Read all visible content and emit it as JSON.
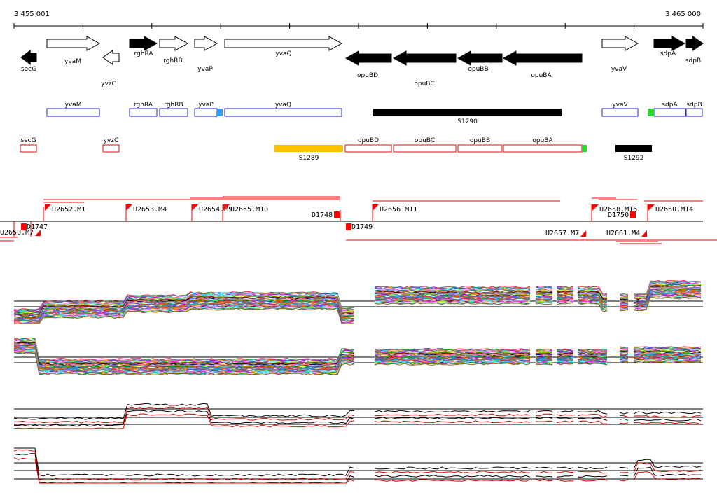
{
  "coordinates": {
    "start": "3 455 001",
    "end": "3 465 000"
  },
  "colors": {
    "track": "#2222cc",
    "rna_box": "#dd1111",
    "segment_yellow": "#ffc000",
    "segment_black": "#000000",
    "green": "#22dd22",
    "blue": "#3399ff",
    "probe": "#ff0000"
  },
  "genes": [
    {
      "name": "secG",
      "strand": "-",
      "fill": "black"
    },
    {
      "name": "yvaM",
      "strand": "+",
      "fill": "white"
    },
    {
      "name": "yvzC",
      "strand": "-",
      "fill": "white"
    },
    {
      "name": "rghRA",
      "strand": "+",
      "fill": "black"
    },
    {
      "name": "rghRB",
      "strand": "+",
      "fill": "white"
    },
    {
      "name": "yvaP",
      "strand": "+",
      "fill": "white"
    },
    {
      "name": "yvaQ",
      "strand": "+",
      "fill": "white"
    },
    {
      "name": "opuBD",
      "strand": "-",
      "fill": "black"
    },
    {
      "name": "opuBC",
      "strand": "-",
      "fill": "black"
    },
    {
      "name": "opuBB",
      "strand": "-",
      "fill": "black"
    },
    {
      "name": "opuBA",
      "strand": "-",
      "fill": "black"
    },
    {
      "name": "yvaV",
      "strand": "+",
      "fill": "white"
    },
    {
      "name": "sdpA",
      "strand": "+",
      "fill": "black"
    },
    {
      "name": "sdpB",
      "strand": "+",
      "fill": "black"
    }
  ],
  "plus_track": [
    "yvaM",
    "rghRA",
    "rghRB",
    "yvaP",
    "yvaQ",
    "S1290",
    "yvaV",
    "sdpA",
    "sdpB"
  ],
  "minus_track": [
    "secG",
    "yvzC",
    "S1289",
    "opuBD",
    "opuBC",
    "opuBB",
    "opuBA",
    "S1292"
  ],
  "probes_upper": [
    "U2652.M1",
    "U2653.M4",
    "U2654.M9",
    "U2655.M10",
    "D1748",
    "U2656.M11",
    "U2658.M16",
    "D1750",
    "U2660.M14"
  ],
  "probes_lower": [
    "D1747",
    "U2650.M7",
    "D1749",
    "U2657.M7",
    "U2661.M4"
  ],
  "panels": [
    "expression-panel-1",
    "expression-panel-2",
    "expression-panel-3",
    "expression-panel-4"
  ]
}
